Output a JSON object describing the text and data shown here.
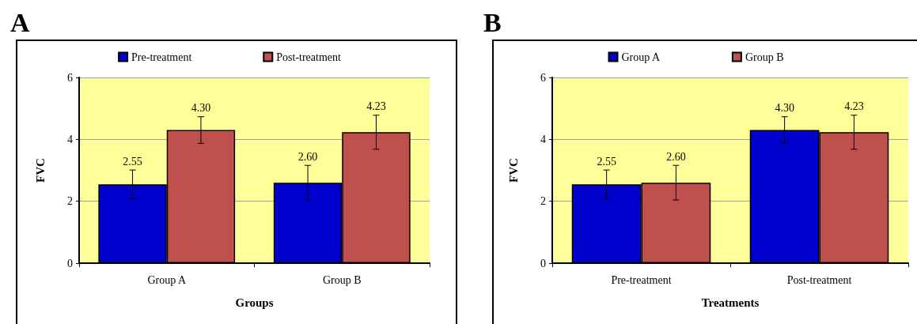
{
  "chart_data": [
    {
      "type": "bar",
      "title": "A",
      "xlabel": "Groups",
      "ylabel": "FVC",
      "categories": [
        "Group A",
        "Group B"
      ],
      "series": [
        {
          "name": "Pre-treatment",
          "color": "#0000cc",
          "values": [
            2.55,
            2.6
          ],
          "errors": [
            0.46,
            0.56
          ],
          "value_labels": [
            "2.55",
            "2.60"
          ]
        },
        {
          "name": "Post-treatment",
          "color": "#c0504d",
          "values": [
            4.3,
            4.23
          ],
          "errors": [
            0.43,
            0.55
          ],
          "value_labels": [
            "4.30",
            "4.23"
          ]
        }
      ],
      "ylim": [
        0,
        6
      ],
      "yticks": [
        0,
        2,
        4,
        6
      ],
      "grid": "y",
      "legend": "top"
    },
    {
      "type": "bar",
      "title": "B",
      "xlabel": "Treatments",
      "ylabel": "FVC",
      "categories": [
        "Pre-treatment",
        "Post-treatment"
      ],
      "series": [
        {
          "name": "Group A",
          "color": "#0000cc",
          "values": [
            2.55,
            4.3
          ],
          "errors": [
            0.46,
            0.43
          ],
          "value_labels": [
            "2.55",
            "4.30"
          ]
        },
        {
          "name": "Group B",
          "color": "#c0504d",
          "values": [
            2.6,
            4.23
          ],
          "errors": [
            0.56,
            0.55
          ],
          "value_labels": [
            "2.60",
            "4.23"
          ]
        }
      ],
      "ylim": [
        0,
        6
      ],
      "yticks": [
        0,
        2,
        4,
        6
      ],
      "grid": "y",
      "legend": "top"
    }
  ]
}
